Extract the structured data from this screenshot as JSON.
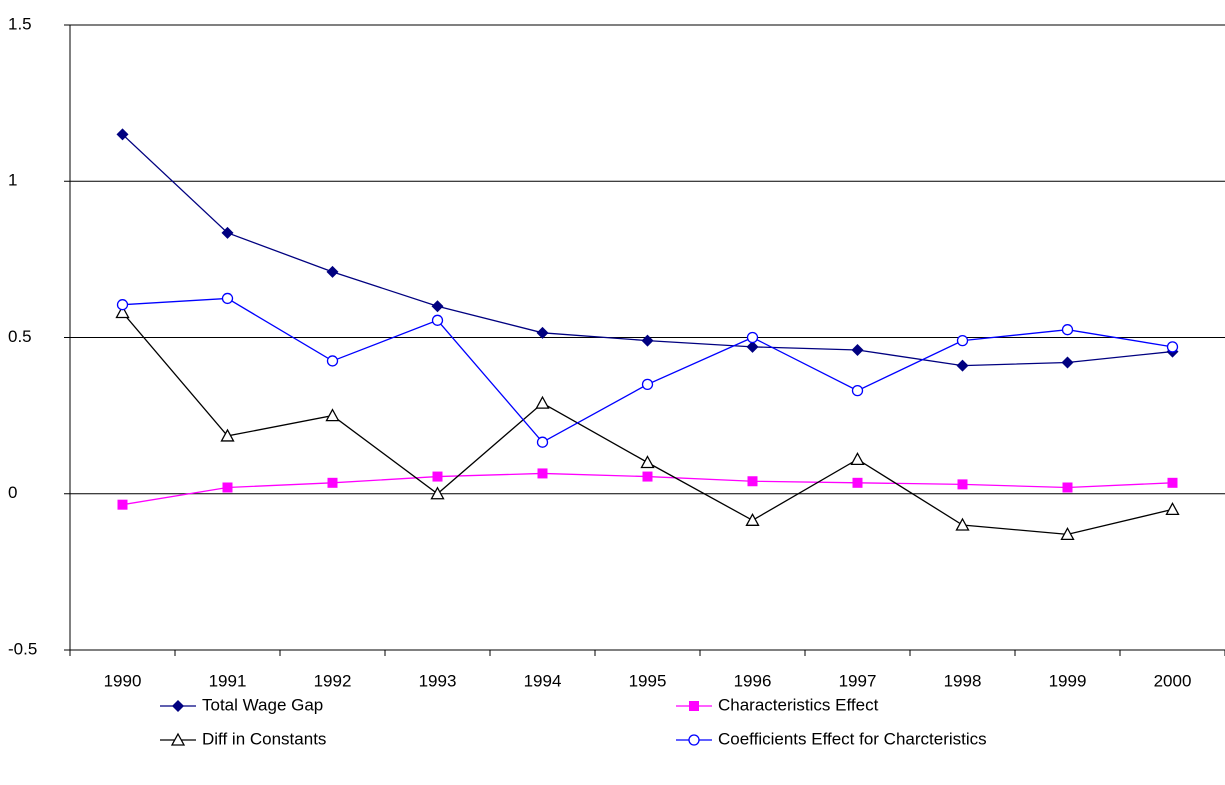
{
  "chart_data": {
    "type": "line",
    "categories": [
      "1990",
      "1991",
      "1992",
      "1993",
      "1994",
      "1995",
      "1996",
      "1997",
      "1998",
      "1999",
      "2000"
    ],
    "series": [
      {
        "name": "Total Wage Gap",
        "color": "#000080",
        "marker": "diamond",
        "values": [
          1.15,
          0.835,
          0.71,
          0.6,
          0.515,
          0.49,
          0.47,
          0.46,
          0.41,
          0.42,
          0.455
        ]
      },
      {
        "name": "Characteristics Effect",
        "color": "#ff00ff",
        "marker": "square",
        "values": [
          -0.035,
          0.02,
          0.035,
          0.055,
          0.065,
          0.055,
          0.04,
          0.035,
          0.03,
          0.02,
          0.035
        ]
      },
      {
        "name": "Diff in Constants",
        "color": "#000000",
        "marker": "triangle",
        "values": [
          0.58,
          0.185,
          0.25,
          0,
          0.29,
          0.1,
          -0.085,
          0.11,
          -0.1,
          -0.13,
          -0.05
        ]
      },
      {
        "name": "Coefficients Effect for Charcteristics",
        "color": "#0000ff",
        "marker": "circle",
        "values": [
          0.605,
          0.625,
          0.425,
          0.555,
          0.165,
          0.35,
          0.5,
          0.33,
          0.49,
          0.525,
          0.47
        ]
      }
    ],
    "ylim": [
      -0.5,
      1.5
    ],
    "yticks": [
      -0.5,
      0,
      0.5,
      1,
      1.5
    ],
    "grid": true,
    "legend": "bottom"
  }
}
